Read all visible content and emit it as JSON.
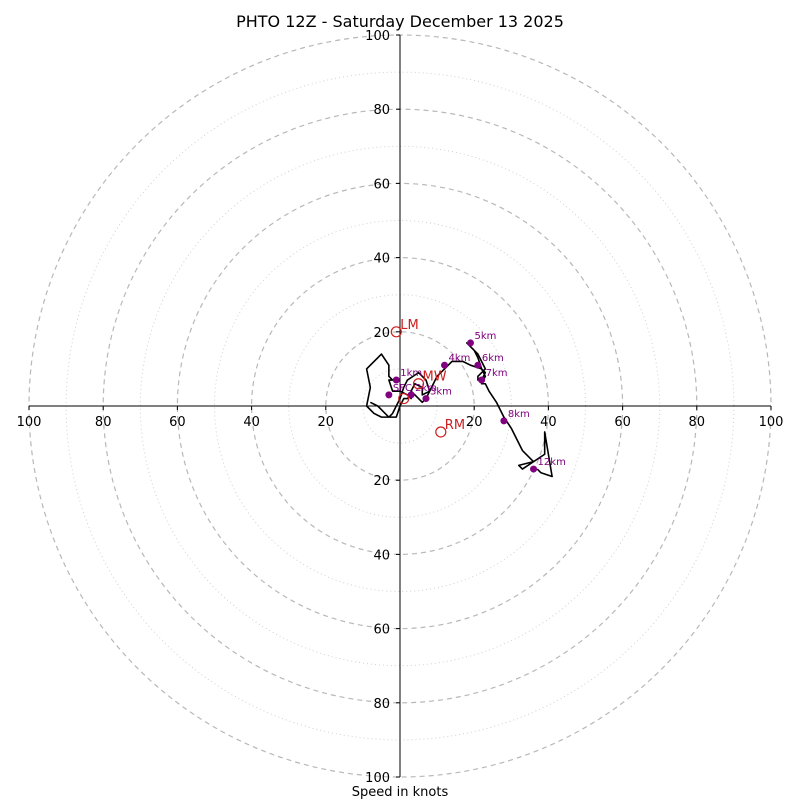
{
  "chart_data": {
    "type": "hodograph",
    "title": "PHTO 12Z - Saturday December 13 2025",
    "xlabel": "Speed in knots",
    "range": 100,
    "ring_major": [
      20,
      40,
      60,
      80,
      100
    ],
    "ring_minor": [
      10,
      30,
      50,
      70,
      90
    ],
    "tick_labels": {
      "left": [
        "100",
        "80",
        "60",
        "40",
        "20"
      ],
      "right": [
        "20",
        "40",
        "60",
        "80",
        "100"
      ],
      "top": [
        "100",
        "80",
        "60",
        "40",
        "20"
      ],
      "bottom": [
        "20",
        "40",
        "60",
        "80",
        "100"
      ]
    },
    "colors": {
      "trace": "#000000",
      "height_points": "#800080",
      "motion": "#cc2020",
      "rings": "#b8b8b8"
    },
    "trace": [
      [
        -8,
        1
      ],
      [
        -6,
        0
      ],
      [
        -3,
        -3
      ],
      [
        -1,
        -3
      ],
      [
        0,
        0
      ],
      [
        1,
        2
      ],
      [
        2,
        2
      ],
      [
        3,
        3
      ],
      [
        3,
        2
      ],
      [
        2,
        3
      ],
      [
        0,
        4
      ],
      [
        -2,
        4
      ],
      [
        -3,
        7
      ],
      [
        -2,
        7
      ],
      [
        -3,
        8
      ],
      [
        -3,
        11
      ],
      [
        -5,
        14
      ],
      [
        -6,
        13
      ],
      [
        -8,
        11
      ],
      [
        -9,
        10
      ],
      [
        -8,
        5
      ],
      [
        -9,
        0
      ],
      [
        -7,
        -2
      ],
      [
        -5,
        -3
      ],
      [
        -3,
        -3
      ],
      [
        -2,
        -2
      ],
      [
        0,
        2
      ],
      [
        1,
        5
      ],
      [
        2,
        7
      ],
      [
        5,
        9
      ],
      [
        7,
        7
      ],
      [
        8,
        4
      ],
      [
        6,
        3
      ],
      [
        6,
        5
      ],
      [
        4,
        6
      ],
      [
        3,
        4
      ],
      [
        4,
        3
      ],
      [
        6,
        1
      ],
      [
        7,
        2
      ],
      [
        9,
        6
      ],
      [
        10,
        8
      ],
      [
        11,
        9
      ],
      [
        12,
        10
      ],
      [
        14,
        12
      ],
      [
        17,
        12
      ],
      [
        19,
        11
      ],
      [
        22,
        10
      ],
      [
        23,
        9
      ],
      [
        22,
        7
      ],
      [
        21,
        7
      ],
      [
        21,
        8
      ],
      [
        23,
        10
      ],
      [
        22,
        12
      ],
      [
        21,
        14
      ],
      [
        19,
        16
      ],
      [
        18,
        17
      ],
      [
        20,
        15
      ],
      [
        21,
        13
      ],
      [
        22,
        10
      ],
      [
        23,
        8
      ],
      [
        22,
        6
      ],
      [
        23,
        6
      ],
      [
        24,
        4
      ],
      [
        26,
        1
      ],
      [
        28,
        -3
      ],
      [
        30,
        -6
      ],
      [
        33,
        -12
      ],
      [
        36,
        -15
      ],
      [
        32,
        -16
      ],
      [
        33,
        -17
      ],
      [
        39,
        -13
      ],
      [
        39,
        -7
      ],
      [
        41,
        -19
      ],
      [
        38,
        -18
      ],
      [
        37,
        -17
      ]
    ],
    "heights": [
      {
        "label": "SFC",
        "u": -3,
        "v": 3
      },
      {
        "label": "1km",
        "u": -1,
        "v": 7
      },
      {
        "label": "2km",
        "u": 3,
        "v": 3
      },
      {
        "label": "3km",
        "u": 7,
        "v": 2
      },
      {
        "label": "4km",
        "u": 12,
        "v": 11
      },
      {
        "label": "5km",
        "u": 19,
        "v": 17
      },
      {
        "label": "6km",
        "u": 21,
        "v": 11
      },
      {
        "label": "7km",
        "u": 22,
        "v": 7
      },
      {
        "label": "8km",
        "u": 28,
        "v": -4
      },
      {
        "label": "12km",
        "u": 36,
        "v": -17
      }
    ],
    "motions": [
      {
        "label": "LM",
        "u": -1,
        "v": 20
      },
      {
        "label": "RM",
        "u": 11,
        "v": -7
      },
      {
        "label": "MW",
        "u": 5,
        "v": 6
      },
      {
        "label": "",
        "u": 1,
        "v": 2
      }
    ]
  }
}
